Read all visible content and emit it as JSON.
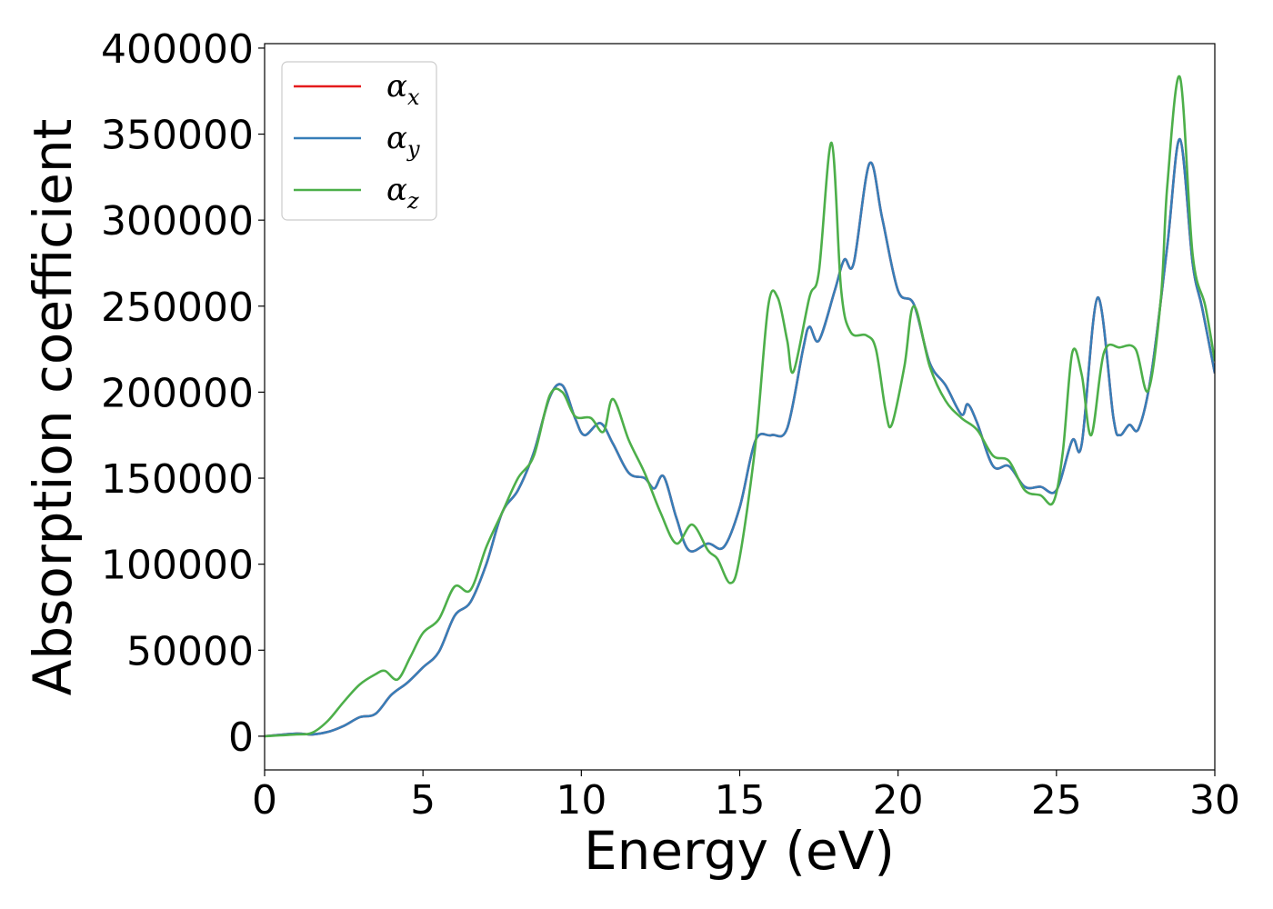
{
  "chart_data": {
    "type": "line",
    "title": "",
    "xlabel": "Energy (eV)",
    "ylabel": "Absorption coefficient",
    "xlim": [
      0,
      30
    ],
    "ylim": [
      -19600,
      402600
    ],
    "grid": false,
    "legend_placement": "top-left",
    "xticks": [
      "0",
      "5",
      "10",
      "15",
      "20",
      "25",
      "30"
    ],
    "xtick_values": [
      0,
      5,
      10,
      15,
      20,
      25,
      30
    ],
    "yticks": [
      "0",
      "50000",
      "100000",
      "150000",
      "200000",
      "250000",
      "300000",
      "350000",
      "400000"
    ],
    "ytick_values": [
      0,
      50000,
      100000,
      150000,
      200000,
      250000,
      300000,
      350000,
      400000
    ],
    "series": [
      {
        "name": "α",
        "sub": "x",
        "color": "#e41a1c",
        "x": [
          0,
          1,
          1.5,
          2,
          2.5,
          3,
          3.5,
          4,
          4.5,
          5,
          5.5,
          6,
          6.5,
          7,
          7.5,
          8,
          8.5,
          9,
          9.4,
          9.8,
          10.1,
          10.6,
          11,
          11.5,
          12,
          12.3,
          12.6,
          13,
          13.4,
          14,
          14.5,
          15,
          15.5,
          16,
          16.5,
          17,
          17.2,
          17.5,
          18,
          18.3,
          18.6,
          19.1,
          19.5,
          20,
          20.5,
          21,
          21.5,
          22,
          22.2,
          22.5,
          23,
          23.5,
          24,
          24.5,
          25,
          25.5,
          25.8,
          26.3,
          26.8,
          27,
          27.3,
          27.6,
          28,
          28.5,
          28.9,
          29.3,
          29.6,
          30
        ],
        "y": [
          0,
          1500,
          1000,
          2500,
          6000,
          11000,
          13000,
          24000,
          31000,
          40000,
          49000,
          70000,
          78000,
          100000,
          130000,
          143000,
          165000,
          197000,
          204000,
          185000,
          175000,
          182000,
          170000,
          153000,
          150000,
          144000,
          151000,
          127000,
          108000,
          112000,
          110000,
          133000,
          172000,
          175000,
          179000,
          225000,
          238000,
          230000,
          259000,
          277000,
          275000,
          333000,
          301000,
          259000,
          251000,
          217000,
          204000,
          187000,
          193000,
          182000,
          157000,
          157000,
          145000,
          145000,
          143000,
          172000,
          170000,
          255000,
          185000,
          175000,
          181000,
          179000,
          211000,
          285000,
          347000,
          275000,
          249000,
          211000
        ]
      },
      {
        "name": "α",
        "sub": "y",
        "color": "#377eb8",
        "x": [
          0,
          1,
          1.5,
          2,
          2.5,
          3,
          3.5,
          4,
          4.5,
          5,
          5.5,
          6,
          6.5,
          7,
          7.5,
          8,
          8.5,
          9,
          9.4,
          9.8,
          10.1,
          10.6,
          11,
          11.5,
          12,
          12.3,
          12.6,
          13,
          13.4,
          14,
          14.5,
          15,
          15.5,
          16,
          16.5,
          17,
          17.2,
          17.5,
          18,
          18.3,
          18.6,
          19.1,
          19.5,
          20,
          20.5,
          21,
          21.5,
          22,
          22.2,
          22.5,
          23,
          23.5,
          24,
          24.5,
          25,
          25.5,
          25.8,
          26.3,
          26.8,
          27,
          27.3,
          27.6,
          28,
          28.5,
          28.9,
          29.3,
          29.6,
          30
        ],
        "y": [
          0,
          1500,
          1000,
          2500,
          6000,
          11000,
          13000,
          24000,
          31000,
          40000,
          49000,
          70000,
          78000,
          100000,
          130000,
          143000,
          165000,
          197000,
          204000,
          185000,
          175000,
          182000,
          170000,
          153000,
          150000,
          144000,
          151000,
          127000,
          108000,
          112000,
          110000,
          133000,
          172000,
          175000,
          179000,
          225000,
          238000,
          230000,
          259000,
          277000,
          275000,
          333000,
          301000,
          259000,
          251000,
          217000,
          204000,
          187000,
          193000,
          182000,
          157000,
          157000,
          145000,
          145000,
          143000,
          172000,
          170000,
          255000,
          185000,
          175000,
          181000,
          179000,
          211000,
          285000,
          347000,
          275000,
          249000,
          211000
        ]
      },
      {
        "name": "α",
        "sub": "z",
        "color": "#4daf4a",
        "x": [
          0,
          1,
          1.5,
          2,
          2.5,
          3,
          3.5,
          3.8,
          4.2,
          4.6,
          5,
          5.5,
          6,
          6.5,
          7,
          7.5,
          8,
          8.5,
          9,
          9.4,
          9.8,
          10.3,
          10.7,
          11,
          11.5,
          12,
          12.5,
          13,
          13.5,
          14,
          14.3,
          14.7,
          15,
          15.5,
          15.9,
          16.2,
          16.5,
          16.7,
          17.2,
          17.5,
          17.9,
          18.2,
          18.5,
          19,
          19.3,
          19.6,
          19.8,
          20.2,
          20.5,
          21,
          21.5,
          22,
          22.5,
          23,
          23.5,
          24,
          24.5,
          24.9,
          25.2,
          25.5,
          25.8,
          26.1,
          26.5,
          27,
          27.5,
          27.9,
          28.3,
          28.5,
          28.9,
          29.3,
          29.7,
          30
        ],
        "y": [
          0,
          1000,
          2000,
          9000,
          20000,
          30000,
          36000,
          38000,
          33000,
          46000,
          60000,
          68000,
          87000,
          85000,
          110000,
          130000,
          150000,
          163000,
          198000,
          200000,
          186000,
          185000,
          177000,
          196000,
          172000,
          153000,
          130000,
          112000,
          123000,
          108000,
          103000,
          89000,
          104000,
          170000,
          250000,
          255000,
          230000,
          212000,
          255000,
          270000,
          345000,
          260000,
          235000,
          233000,
          225000,
          190000,
          181000,
          215000,
          250000,
          215000,
          195000,
          185000,
          178000,
          163000,
          160000,
          143000,
          140000,
          136000,
          165000,
          223000,
          210000,
          175000,
          223000,
          226000,
          225000,
          201000,
          255000,
          320000,
          383000,
          280000,
          250000,
          218000
        ]
      }
    ]
  }
}
